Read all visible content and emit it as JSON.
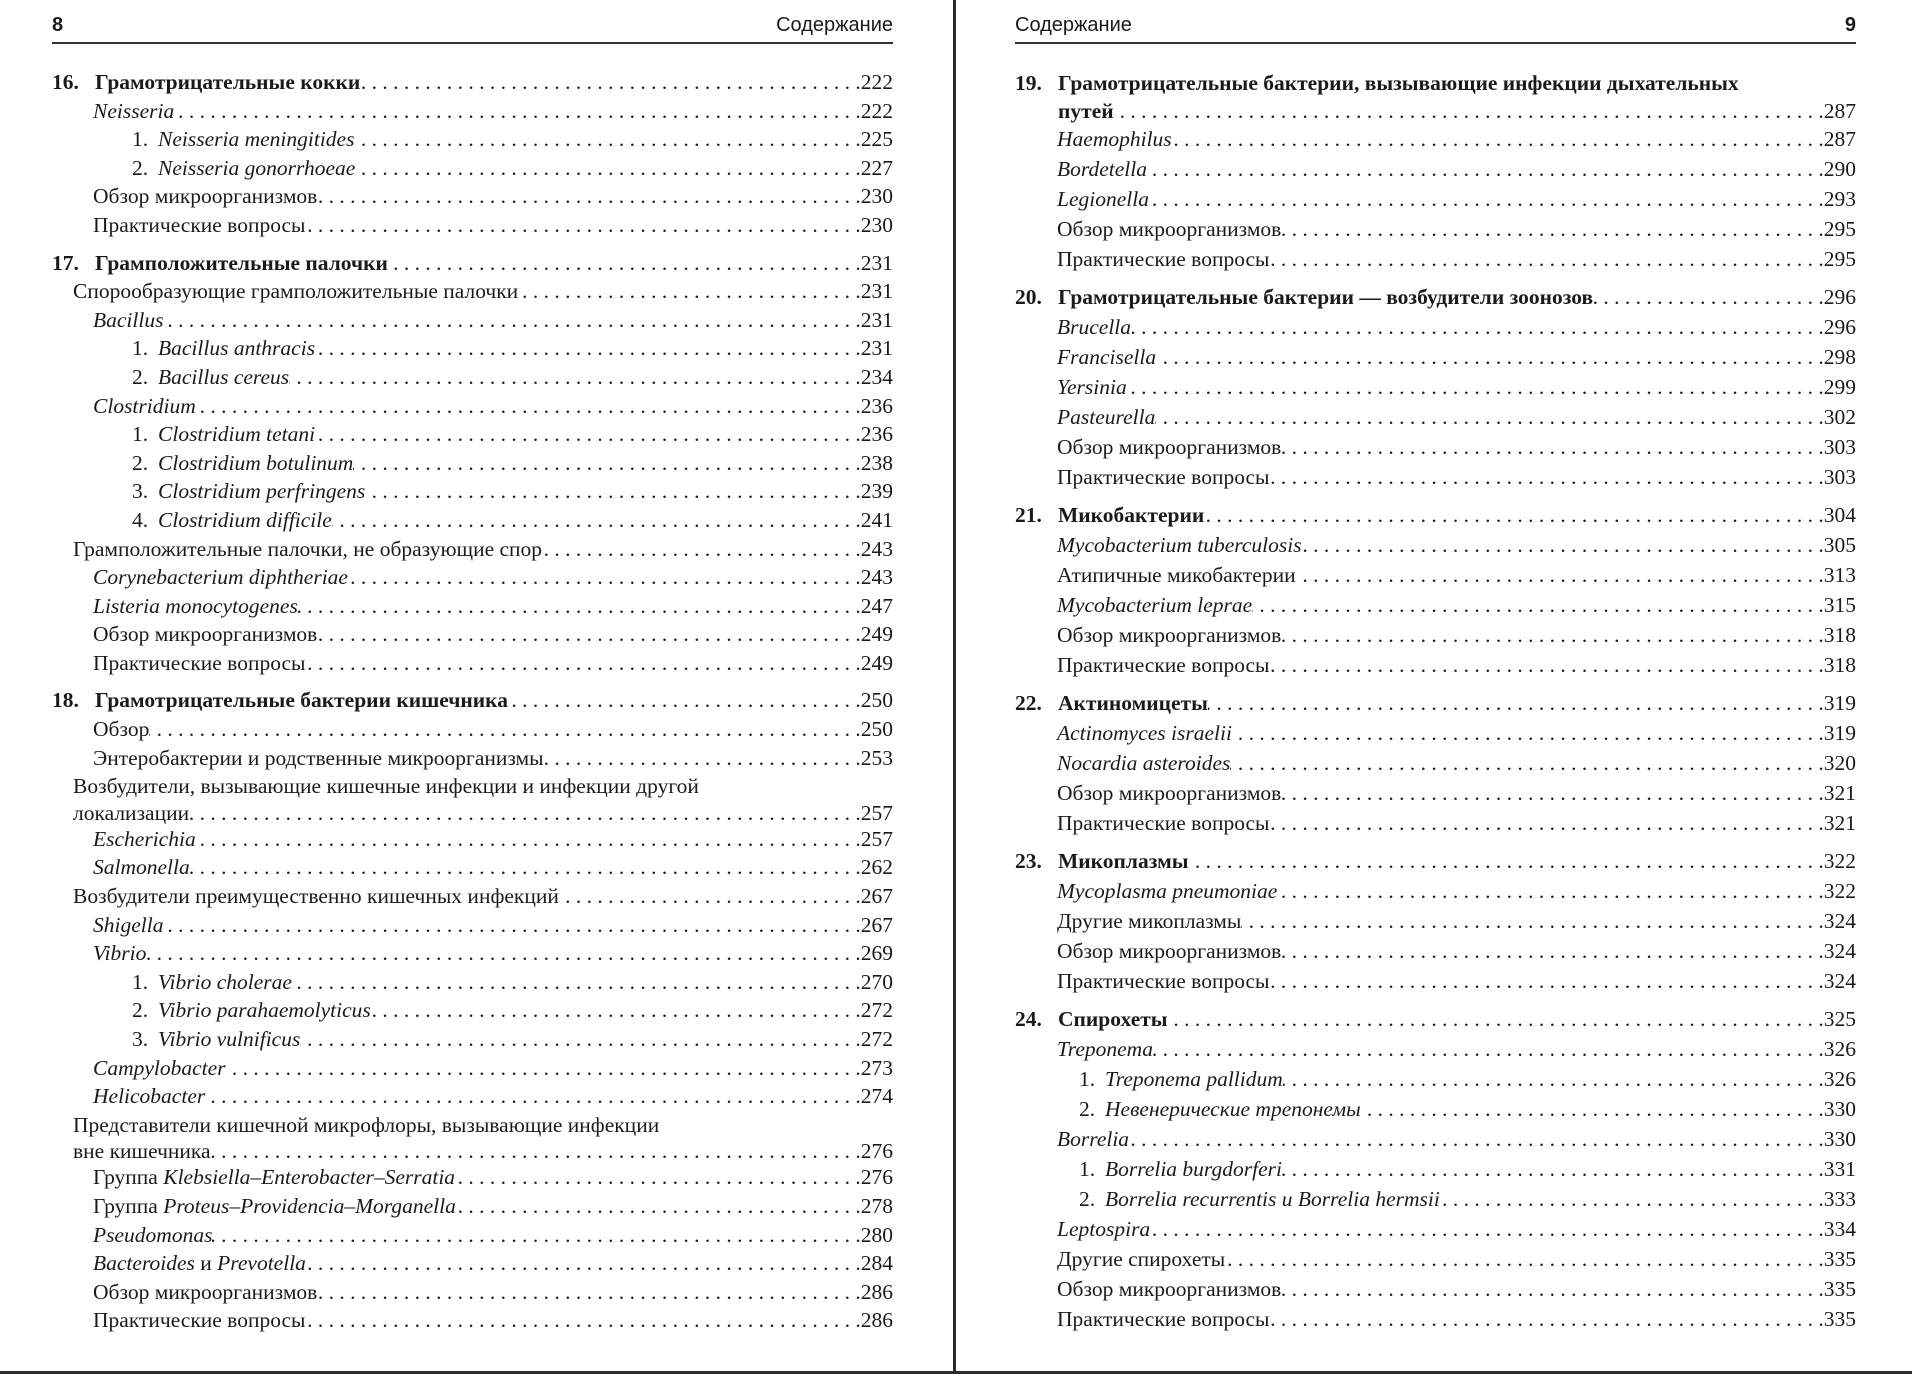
{
  "left_page": {
    "page_number": "8",
    "running_head": "Содержание",
    "entries": [
      {
        "type": "ch",
        "num": "16.",
        "parts": [
          {
            "t": "Грамотрицательные кокки"
          }
        ],
        "page": "222"
      },
      {
        "lvl": 2,
        "parts": [
          {
            "t": "Neisseria",
            "i": true
          }
        ],
        "page": "222"
      },
      {
        "lvl": 3,
        "num": "1.",
        "parts": [
          {
            "t": "Neisseria meningitides",
            "i": true
          }
        ],
        "page": "225"
      },
      {
        "lvl": 3,
        "num": "2.",
        "parts": [
          {
            "t": "Neisseria gonorrhoeae",
            "i": true
          }
        ],
        "page": "227"
      },
      {
        "lvl": 2,
        "parts": [
          {
            "t": "Обзор микроорганизмов"
          }
        ],
        "page": "230"
      },
      {
        "lvl": 2,
        "parts": [
          {
            "t": "Практические вопросы"
          }
        ],
        "page": "230"
      },
      {
        "type": "ch",
        "num": "17.",
        "parts": [
          {
            "t": "Грамположительные палочки"
          }
        ],
        "page": "231"
      },
      {
        "lvl": 1,
        "parts": [
          {
            "t": "Спорообразующие грамположительные палочки"
          }
        ],
        "page": "231"
      },
      {
        "lvl": 2,
        "parts": [
          {
            "t": "Bacillus",
            "i": true
          }
        ],
        "page": "231"
      },
      {
        "lvl": 3,
        "num": "1.",
        "parts": [
          {
            "t": "Bacillus anthracis",
            "i": true
          }
        ],
        "page": "231"
      },
      {
        "lvl": 3,
        "num": "2.",
        "parts": [
          {
            "t": "Bacillus cereus",
            "i": true
          }
        ],
        "page": "234"
      },
      {
        "lvl": 2,
        "parts": [
          {
            "t": "Clostridium",
            "i": true
          }
        ],
        "page": "236"
      },
      {
        "lvl": 3,
        "num": "1.",
        "parts": [
          {
            "t": "Clostridium tetani",
            "i": true
          }
        ],
        "page": "236"
      },
      {
        "lvl": 3,
        "num": "2.",
        "parts": [
          {
            "t": "Clostridium botulinum",
            "i": true
          }
        ],
        "page": "238"
      },
      {
        "lvl": 3,
        "num": "3.",
        "parts": [
          {
            "t": "Clostridium perfringens",
            "i": true
          }
        ],
        "page": "239"
      },
      {
        "lvl": 3,
        "num": "4.",
        "parts": [
          {
            "t": "Clostridium difficile",
            "i": true
          }
        ],
        "page": "241"
      },
      {
        "lvl": 1,
        "parts": [
          {
            "t": "Грамположительные палочки, не образующие спор"
          }
        ],
        "page": "243"
      },
      {
        "lvl": 2,
        "parts": [
          {
            "t": "Corynebacterium diphtheriae",
            "i": true
          }
        ],
        "page": "243"
      },
      {
        "lvl": 2,
        "parts": [
          {
            "t": "Listeria monocytogenes",
            "i": true
          }
        ],
        "page": "247"
      },
      {
        "lvl": 2,
        "parts": [
          {
            "t": "Обзор микроорганизмов"
          }
        ],
        "page": "249"
      },
      {
        "lvl": 2,
        "parts": [
          {
            "t": "Практические вопросы"
          }
        ],
        "page": "249"
      },
      {
        "type": "ch",
        "num": "18.",
        "parts": [
          {
            "t": "Грамотрицательные бактерии кишечника"
          }
        ],
        "page": "250"
      },
      {
        "lvl": 2,
        "parts": [
          {
            "t": "Обзор"
          }
        ],
        "page": "250"
      },
      {
        "lvl": 2,
        "parts": [
          {
            "t": "Энтеробактерии и родственные микроорганизмы"
          }
        ],
        "page": "253"
      },
      {
        "lvl": 1,
        "first_line": "Возбудители, вызывающие кишечные инфекции и инфекции другой",
        "parts": [
          {
            "t": "локализации"
          }
        ],
        "page": "257"
      },
      {
        "lvl": 2,
        "parts": [
          {
            "t": "Escherichia",
            "i": true
          }
        ],
        "page": "257"
      },
      {
        "lvl": 2,
        "parts": [
          {
            "t": "Salmonella",
            "i": true
          }
        ],
        "page": "262"
      },
      {
        "lvl": 1,
        "parts": [
          {
            "t": "Возбудители преимущественно кишечных инфекций"
          }
        ],
        "page": "267"
      },
      {
        "lvl": 2,
        "parts": [
          {
            "t": "Shigella",
            "i": true
          }
        ],
        "page": "267"
      },
      {
        "lvl": 2,
        "parts": [
          {
            "t": "Vibrio",
            "i": true
          }
        ],
        "page": "269"
      },
      {
        "lvl": 3,
        "num": "1.",
        "parts": [
          {
            "t": "Vibrio cholerae",
            "i": true
          }
        ],
        "page": "270"
      },
      {
        "lvl": 3,
        "num": "2.",
        "parts": [
          {
            "t": "Vibrio parahaemolyticus",
            "i": true
          }
        ],
        "page": "272"
      },
      {
        "lvl": 3,
        "num": "3.",
        "parts": [
          {
            "t": "Vibrio vulnificus",
            "i": true
          }
        ],
        "page": "272"
      },
      {
        "lvl": 2,
        "parts": [
          {
            "t": "Campylobacter",
            "i": true
          }
        ],
        "page": "273"
      },
      {
        "lvl": 2,
        "parts": [
          {
            "t": "Helicobacter",
            "i": true
          }
        ],
        "page": "274"
      },
      {
        "lvl": 1,
        "first_line": "Представители кишечной микрофлоры, вызывающие инфекции",
        "parts": [
          {
            "t": "вне кишечника"
          }
        ],
        "page": "276"
      },
      {
        "lvl": 2,
        "parts": [
          {
            "t": "Группа "
          },
          {
            "t": "Klebsiella–Enterobacter–Serratia",
            "i": true
          }
        ],
        "page": "276"
      },
      {
        "lvl": 2,
        "parts": [
          {
            "t": "Группа "
          },
          {
            "t": "Proteus–Providencia–Morganella",
            "i": true
          }
        ],
        "page": "278"
      },
      {
        "lvl": 2,
        "parts": [
          {
            "t": "Pseudomonas",
            "i": true
          }
        ],
        "page": "280"
      },
      {
        "lvl": 2,
        "parts": [
          {
            "t": "Bacteroides",
            "i": true
          },
          {
            "t": " и "
          },
          {
            "t": "Prevotella",
            "i": true
          }
        ],
        "page": "284"
      },
      {
        "lvl": 2,
        "parts": [
          {
            "t": "Обзор микроорганизмов"
          }
        ],
        "page": "286"
      },
      {
        "lvl": 2,
        "parts": [
          {
            "t": "Практические вопросы"
          }
        ],
        "page": "286"
      }
    ]
  },
  "right_page": {
    "page_number": "9",
    "running_head": "Содержание",
    "entries": [
      {
        "type": "ch",
        "num": "19.",
        "first_line": "Грамотрицательные бактерии, вызывающие инфекции дыхательных",
        "parts": [
          {
            "t": "путей"
          }
        ],
        "page": "287"
      },
      {
        "lvl": 2,
        "parts": [
          {
            "t": "Haemophilus",
            "i": true
          }
        ],
        "page": "287"
      },
      {
        "lvl": 2,
        "parts": [
          {
            "t": "Bordetella",
            "i": true
          }
        ],
        "page": "290"
      },
      {
        "lvl": 2,
        "parts": [
          {
            "t": "Legionella",
            "i": true
          }
        ],
        "page": "293"
      },
      {
        "lvl": 2,
        "parts": [
          {
            "t": "Обзор микроорганизмов"
          }
        ],
        "page": "295"
      },
      {
        "lvl": 2,
        "parts": [
          {
            "t": "Практические вопросы"
          }
        ],
        "page": "295"
      },
      {
        "type": "ch",
        "num": "20.",
        "parts": [
          {
            "t": "Грамотрицательные бактерии — возбудители зоонозов"
          }
        ],
        "page": "296"
      },
      {
        "lvl": 2,
        "parts": [
          {
            "t": "Brucella",
            "i": true
          }
        ],
        "page": "296"
      },
      {
        "lvl": 2,
        "parts": [
          {
            "t": "Francisella",
            "i": true
          }
        ],
        "page": "298"
      },
      {
        "lvl": 2,
        "parts": [
          {
            "t": "Yersinia",
            "i": true
          }
        ],
        "page": "299"
      },
      {
        "lvl": 2,
        "parts": [
          {
            "t": "Pasteurella",
            "i": true
          }
        ],
        "page": "302"
      },
      {
        "lvl": 2,
        "parts": [
          {
            "t": "Обзор микроорганизмов"
          }
        ],
        "page": "303"
      },
      {
        "lvl": 2,
        "parts": [
          {
            "t": "Практические вопросы"
          }
        ],
        "page": "303"
      },
      {
        "type": "ch",
        "num": "21.",
        "parts": [
          {
            "t": "Микобактерии"
          }
        ],
        "page": "304"
      },
      {
        "lvl": 2,
        "parts": [
          {
            "t": "Mycobacterium tuberculosis",
            "i": true
          }
        ],
        "page": "305"
      },
      {
        "lvl": 2,
        "parts": [
          {
            "t": "Атипичные микобактерии"
          }
        ],
        "page": "313"
      },
      {
        "lvl": 2,
        "parts": [
          {
            "t": "Mycobacterium leprae",
            "i": true
          }
        ],
        "page": "315"
      },
      {
        "lvl": 2,
        "parts": [
          {
            "t": "Обзор микроорганизмов"
          }
        ],
        "page": "318"
      },
      {
        "lvl": 2,
        "parts": [
          {
            "t": "Практические вопросы"
          }
        ],
        "page": "318"
      },
      {
        "type": "ch",
        "num": "22.",
        "parts": [
          {
            "t": "Актиномицеты"
          }
        ],
        "page": "319"
      },
      {
        "lvl": 2,
        "parts": [
          {
            "t": "Actinomyces israelii",
            "i": true
          }
        ],
        "page": "319"
      },
      {
        "lvl": 2,
        "parts": [
          {
            "t": "Nocardia asteroides",
            "i": true
          }
        ],
        "page": "320"
      },
      {
        "lvl": 2,
        "parts": [
          {
            "t": "Обзор микроорганизмов"
          }
        ],
        "page": "321"
      },
      {
        "lvl": 2,
        "parts": [
          {
            "t": "Практические вопросы"
          }
        ],
        "page": "321"
      },
      {
        "type": "ch",
        "num": "23.",
        "parts": [
          {
            "t": "Микоплазмы"
          }
        ],
        "page": "322"
      },
      {
        "lvl": 2,
        "parts": [
          {
            "t": "Mycoplasma pneumoniae",
            "i": true
          }
        ],
        "page": "322"
      },
      {
        "lvl": 2,
        "parts": [
          {
            "t": "Другие микоплазмы"
          }
        ],
        "page": "324"
      },
      {
        "lvl": 2,
        "parts": [
          {
            "t": "Обзор микроорганизмов"
          }
        ],
        "page": "324"
      },
      {
        "lvl": 2,
        "parts": [
          {
            "t": "Практические вопросы"
          }
        ],
        "page": "324"
      },
      {
        "type": "ch",
        "num": "24.",
        "parts": [
          {
            "t": "Спирохеты"
          }
        ],
        "page": "325"
      },
      {
        "lvl": 2,
        "parts": [
          {
            "t": "Treponema",
            "i": true
          }
        ],
        "page": "326"
      },
      {
        "lvl": 3,
        "num": "1.",
        "parts": [
          {
            "t": "Treponema pallidum",
            "i": true
          }
        ],
        "page": "326"
      },
      {
        "lvl": 3,
        "num": "2.",
        "parts": [
          {
            "t": "Невенерические трепонемы",
            "i": true
          }
        ],
        "page": "330"
      },
      {
        "lvl": 2,
        "parts": [
          {
            "t": "Borrelia",
            "i": true
          }
        ],
        "page": "330"
      },
      {
        "lvl": 3,
        "num": "1.",
        "parts": [
          {
            "t": "Borrelia burgdorferi",
            "i": true
          }
        ],
        "page": "331"
      },
      {
        "lvl": 3,
        "num": "2.",
        "parts": [
          {
            "t": "Borrelia recurrentis",
            "i": true
          },
          {
            "t": " и ",
            "i": true
          },
          {
            "t": "Borrelia hermsii",
            "i": true
          }
        ],
        "page": "333"
      },
      {
        "lvl": 2,
        "parts": [
          {
            "t": "Leptospira",
            "i": true
          }
        ],
        "page": "334"
      },
      {
        "lvl": 2,
        "parts": [
          {
            "t": "Другие спирохеты"
          }
        ],
        "page": "335"
      },
      {
        "lvl": 2,
        "parts": [
          {
            "t": "Обзор микроорганизмов"
          }
        ],
        "page": "335"
      },
      {
        "lvl": 2,
        "parts": [
          {
            "t": "Практические вопросы"
          }
        ],
        "page": "335"
      }
    ]
  }
}
